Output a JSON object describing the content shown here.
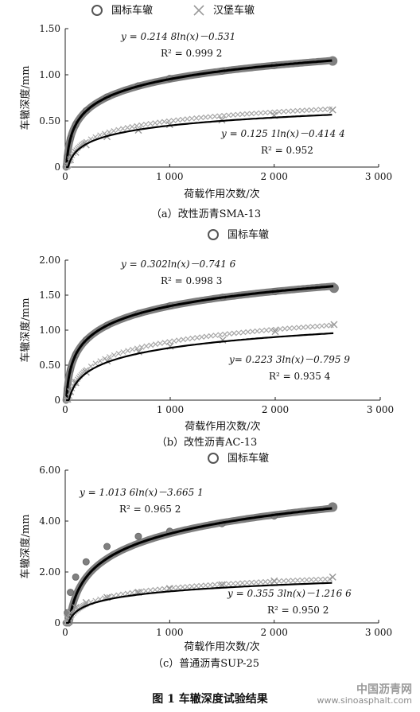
{
  "figure_caption": "图 1    车辙深度试验结果",
  "watermark": {
    "name": "中国沥青网",
    "url": "www.sinoasphalt.com"
  },
  "chart_data": [
    {
      "type": "scatter",
      "caption": "（a）改性沥青SMA-13",
      "xlabel": "荷载作用次数/次",
      "ylabel": "车辙深度/mm",
      "xlim": [
        0,
        3000
      ],
      "ylim": [
        0,
        1.5
      ],
      "xticks": [
        0,
        1000,
        2000,
        3000
      ],
      "xtick_labels": [
        "0",
        "1 000",
        "2 000",
        "3 000"
      ],
      "yticks": [
        0,
        0.5,
        1.0,
        1.5
      ],
      "ytick_labels": [
        "0",
        "0.50",
        "1.00",
        "1.50"
      ],
      "legend": [
        "国标车辙",
        "汉堡车辙"
      ],
      "legend_position": "top",
      "series": [
        {
          "name": "国标车辙",
          "marker": "circle",
          "a": 0.2148,
          "b": -0.531,
          "scale": 1.0,
          "fit_equation": "y = 0.214 8ln(x)－0.531",
          "r2_label": "R² = 0.999 2",
          "x": [
            20,
            50,
            100,
            200,
            400,
            700,
            1000,
            1500,
            2000,
            2560
          ],
          "y": [
            0.11,
            0.31,
            0.46,
            0.61,
            0.76,
            0.88,
            0.96,
            1.04,
            1.1,
            1.15
          ]
        },
        {
          "name": "汉堡车辙",
          "marker": "x",
          "a": 0.1251,
          "b": -0.4144,
          "scale": 1.11,
          "fit_equation": "y = 0.125 1ln(x)－0.414 4",
          "r2_label": "R² = 0.952",
          "x": [
            20,
            50,
            100,
            200,
            400,
            700,
            1000,
            1500,
            2000,
            2560
          ],
          "y": [
            0.02,
            0.08,
            0.16,
            0.24,
            0.33,
            0.4,
            0.46,
            0.51,
            0.56,
            0.62
          ]
        }
      ]
    },
    {
      "type": "scatter",
      "caption": "（b）改性沥青AC-13",
      "xlabel": "荷载作用次数/次",
      "ylabel": "车辙深度/mm",
      "xlim": [
        0,
        3000
      ],
      "ylim": [
        0,
        2.0
      ],
      "xticks": [
        0,
        1000,
        2000,
        3000
      ],
      "xtick_labels": [
        "0",
        "1 000",
        "2 000",
        "3 000"
      ],
      "yticks": [
        0,
        0.5,
        1.0,
        1.5,
        2.0
      ],
      "ytick_labels": [
        "0",
        "0.50",
        "1.00",
        "1.50",
        "2.00"
      ],
      "legend": [
        "国标车辙"
      ],
      "legend_position": "top",
      "series": [
        {
          "name": "国标车辙",
          "marker": "circle",
          "a": 0.302,
          "b": -0.7416,
          "scale": 1.0,
          "fit_equation": "y = 0.302ln(x)－0.741 6",
          "r2_label": "R² = 0.998 3",
          "x": [
            20,
            50,
            100,
            200,
            400,
            700,
            1000,
            1500,
            2000,
            2560
          ],
          "y": [
            0.16,
            0.44,
            0.65,
            0.86,
            1.07,
            1.24,
            1.35,
            1.47,
            1.55,
            1.6
          ]
        },
        {
          "name": "",
          "marker": "x",
          "a": 0.2233,
          "b": -0.7959,
          "scale": 1.12,
          "fit_equation": "y= 0.223 3ln(x)－0.795 9",
          "r2_label": "R² = 0.935 4",
          "x": [
            20,
            50,
            100,
            200,
            400,
            700,
            1000,
            1500,
            2000,
            2560
          ],
          "y": [
            0.02,
            0.12,
            0.25,
            0.4,
            0.56,
            0.69,
            0.77,
            0.86,
            0.98,
            1.08
          ]
        }
      ]
    },
    {
      "type": "scatter",
      "caption": "（c）普通沥青SUP-25",
      "xlabel": "荷载作用次数/次",
      "ylabel": "车辙深度/mm",
      "xlim": [
        0,
        3000
      ],
      "ylim": [
        0,
        6.0
      ],
      "xticks": [
        0,
        1000,
        2000,
        3000
      ],
      "xtick_labels": [
        "0",
        "1 000",
        "2 000",
        "3 000"
      ],
      "yticks": [
        0,
        2,
        4,
        6
      ],
      "ytick_labels": [
        "0",
        "2.00",
        "4.00",
        "6.00"
      ],
      "legend": [
        "国标车辙"
      ],
      "legend_position": "top",
      "series": [
        {
          "name": "国标车辙",
          "marker": "circle",
          "a": 1.0136,
          "b": -3.6651,
          "scale": 1.05,
          "fit_equation": "y = 1.013 6ln(x)－3.665 1",
          "r2_label": "R² = 0.965 2",
          "x": [
            20,
            50,
            100,
            200,
            400,
            700,
            1000,
            1500,
            2000,
            2560
          ],
          "y": [
            0.4,
            1.2,
            1.8,
            2.4,
            3.0,
            3.4,
            3.6,
            3.9,
            4.2,
            4.55
          ]
        },
        {
          "name": "",
          "marker": "x",
          "a": 0.3553,
          "b": -1.2166,
          "scale": 1.1,
          "fit_equation": "y = 0.355 3ln(x)－1.216 6",
          "r2_label": "R² = 0.950 2",
          "x": [
            20,
            50,
            100,
            200,
            400,
            700,
            1000,
            1500,
            2000,
            2560
          ],
          "y": [
            0.2,
            0.4,
            0.6,
            0.8,
            1.0,
            1.2,
            1.35,
            1.5,
            1.65,
            1.8
          ]
        }
      ]
    }
  ]
}
